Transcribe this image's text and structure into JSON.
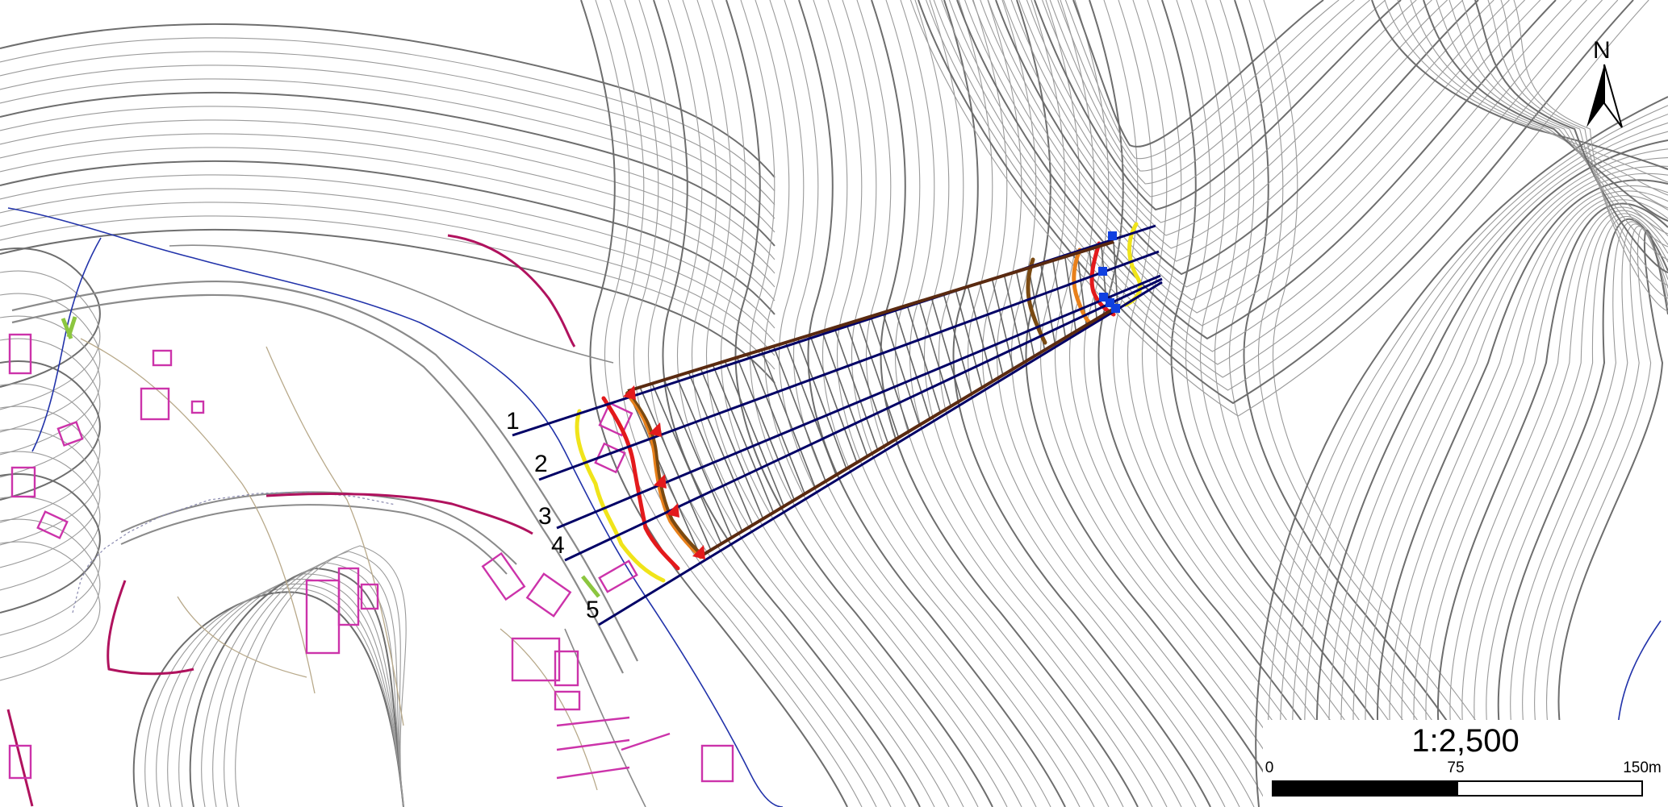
{
  "map": {
    "north_arrow_label": "N",
    "scale": {
      "ratio_label": "1:2,500",
      "ticks": [
        "0",
        "75",
        "150m"
      ],
      "segments": [
        "black",
        "white"
      ]
    },
    "profile_labels": [
      "1",
      "2",
      "3",
      "4",
      "5"
    ],
    "colors": {
      "contour_minor": "#9a9a9a",
      "contour_major": "#6e6e6e",
      "stream": "#2233aa",
      "road": "#8a8a8a",
      "building": "#cc33aa",
      "boundary": "#b0125e",
      "profile_line": "#000066",
      "zone_yellow": "#f0e41a",
      "zone_red": "#e31a1c",
      "zone_orange": "#e8801a",
      "zone_brown": "#7a4a12",
      "marker_blue": "#1040e0",
      "marker_red": "#e31a1c",
      "vegetation_green": "#8cc63f"
    },
    "icons": [
      "north-arrow-icon",
      "triangle-marker-icon",
      "square-marker-icon"
    ]
  }
}
